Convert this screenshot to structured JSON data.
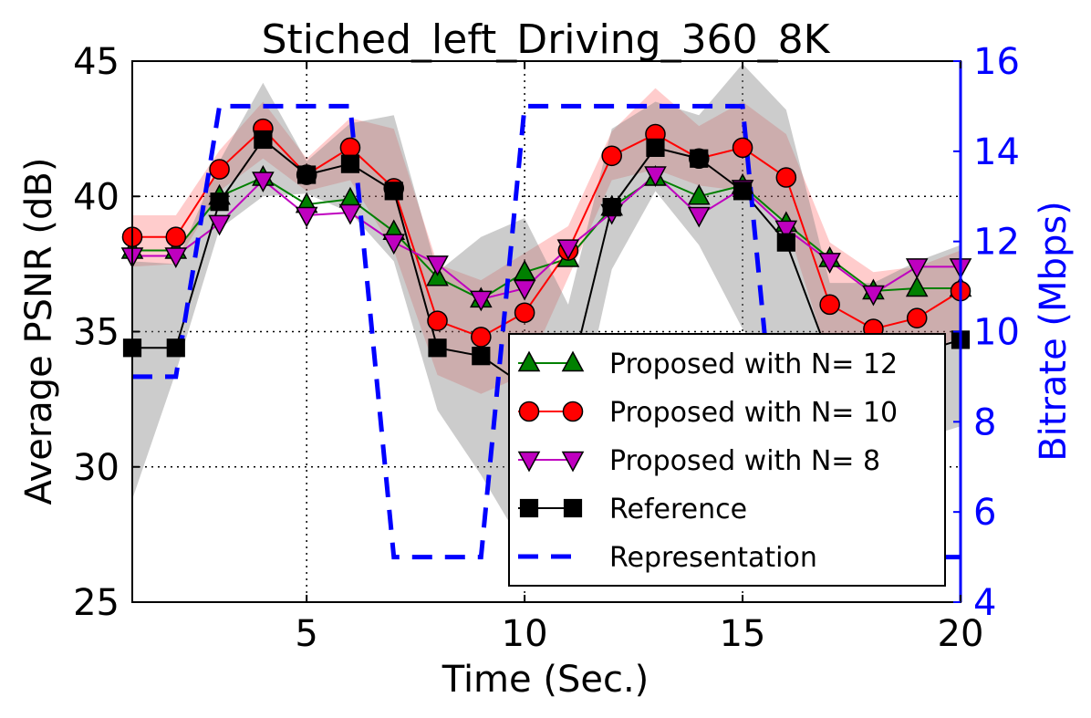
{
  "chart_data": {
    "type": "line",
    "title": "Stiched_left_Driving_360_8K",
    "xlabel": "Time (Sec.)",
    "ylabel": "Average PSNR (dB)",
    "y2label": "Bitrate (Mbps)",
    "xlim": [
      1,
      20
    ],
    "ylim": [
      25,
      45
    ],
    "y2lim": [
      4,
      16
    ],
    "xticks": [
      "5",
      "10",
      "15",
      "20"
    ],
    "xtick_values": [
      5,
      10,
      15,
      20
    ],
    "yticks": [
      "25",
      "30",
      "35",
      "40",
      "45"
    ],
    "ytick_values": [
      25,
      30,
      35,
      40,
      45
    ],
    "y2ticks": [
      "4",
      "6",
      "8",
      "10",
      "12",
      "14",
      "16"
    ],
    "y2tick_values": [
      4,
      6,
      8,
      10,
      12,
      14,
      16
    ],
    "grid": true,
    "legend_position": "lower-right",
    "x": [
      1,
      2,
      3,
      4,
      5,
      6,
      7,
      8,
      9,
      10,
      11,
      12,
      13,
      14,
      15,
      16,
      17,
      18,
      19,
      20
    ],
    "series": [
      {
        "name": "Proposed with N= 12",
        "color": "#008000",
        "marker": "triangle-up",
        "values": [
          38.0,
          38.0,
          40.0,
          40.7,
          39.7,
          39.9,
          38.7,
          37.0,
          36.2,
          37.2,
          37.7,
          39.6,
          40.7,
          40.0,
          40.4,
          39.0,
          37.7,
          36.5,
          36.6,
          36.6
        ]
      },
      {
        "name": "Proposed with N= 10",
        "color": "#ff0000",
        "marker": "circle",
        "values": [
          38.5,
          38.5,
          41.0,
          42.5,
          40.8,
          41.8,
          40.3,
          35.4,
          34.8,
          35.7,
          38.0,
          41.5,
          42.3,
          41.4,
          41.8,
          40.7,
          36.0,
          35.1,
          35.5,
          36.5
        ]
      },
      {
        "name": "Proposed with N= 8",
        "color": "#bf00bf",
        "marker": "triangle-down",
        "values": [
          37.8,
          37.8,
          39.0,
          40.6,
          39.3,
          39.4,
          38.3,
          37.5,
          36.2,
          36.6,
          38.1,
          39.4,
          40.8,
          39.3,
          40.3,
          38.8,
          37.6,
          36.4,
          37.4,
          37.4
        ]
      },
      {
        "name": "Reference",
        "color": "#000000",
        "marker": "square",
        "values": [
          34.4,
          34.4,
          39.8,
          42.1,
          40.8,
          41.2,
          40.2,
          34.4,
          34.1,
          33.0,
          33.0,
          39.6,
          41.8,
          41.4,
          40.2,
          38.3,
          34.0,
          34.0,
          34.2,
          34.7
        ]
      },
      {
        "name": "Representation",
        "color": "#0000ff",
        "axis": "right",
        "style": "dashed",
        "values": [
          9,
          9,
          15,
          15,
          15,
          15,
          5,
          5,
          5,
          15,
          15,
          15,
          15,
          15,
          15,
          5,
          5,
          5,
          5,
          5
        ]
      }
    ],
    "bands": [
      {
        "color": "#ff0000",
        "opacity": 0.2,
        "upper": [
          39.3,
          39.3,
          41.7,
          43.5,
          41.4,
          42.9,
          42.5,
          37.5,
          36.9,
          37.9,
          38.9,
          42.4,
          44.0,
          42.6,
          43.5,
          42.3,
          38.3,
          37.2,
          37.4,
          38.0
        ],
        "lower": [
          37.4,
          37.5,
          40.2,
          41.4,
          40.2,
          40.6,
          38.0,
          33.4,
          32.7,
          33.4,
          37.0,
          40.6,
          41.0,
          40.4,
          40.2,
          39.0,
          33.9,
          33.1,
          33.6,
          35.0
        ]
      },
      {
        "color": "#808080",
        "opacity": 0.4,
        "upper": [
          37.6,
          37.5,
          41.3,
          44.2,
          41.3,
          42.7,
          43.0,
          37.2,
          38.5,
          39.2,
          36.0,
          42.5,
          43.5,
          43.0,
          44.9,
          43.2,
          36.8,
          36.8,
          37.6,
          38.2
        ],
        "lower": [
          28.8,
          33.5,
          38.8,
          40.0,
          40.1,
          39.4,
          37.6,
          32.1,
          29.7,
          27.0,
          30.0,
          37.3,
          40.2,
          38.2,
          35.1,
          33.0,
          32.5,
          32.0,
          31.0,
          31.5
        ]
      }
    ]
  }
}
